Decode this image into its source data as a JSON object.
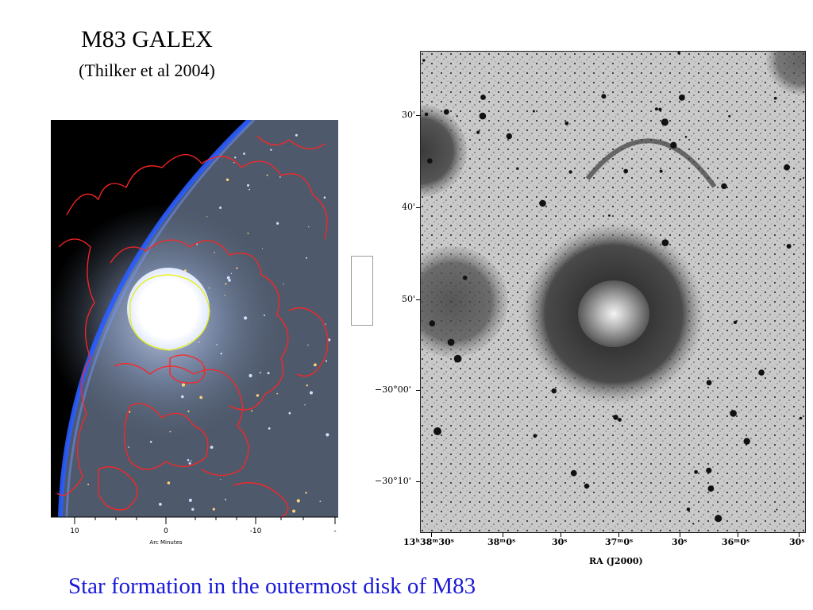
{
  "slide": {
    "title": "M83 GALEX",
    "subtitle": "(Thilker et al 2004)",
    "caption": "Star formation in the outermost disk of M83"
  },
  "galex_image": {
    "x_axis_tick_labels": [
      "10",
      "0",
      "-10",
      "-"
    ],
    "x_axis_label": "Arc Minutes",
    "colors": {
      "sky": "#4a5566",
      "core": "#ffffff",
      "contour": "#ff2020",
      "core_contour": "#e6f000",
      "edge_glow": "#2a60ff"
    }
  },
  "optical_image": {
    "dec_labels": [
      "30'",
      "40'",
      "50'",
      "−30°00'",
      "−30°10'"
    ],
    "ra_labels": [
      "13ʰ38ᵐ30ˢ",
      "38ᵐ0ˢ",
      "30ˢ",
      "37ᵐ0ˢ",
      "30ˢ",
      "36ᵐ0ˢ",
      "30ˢ"
    ],
    "ra_axis_title": "RA (J2000)"
  }
}
